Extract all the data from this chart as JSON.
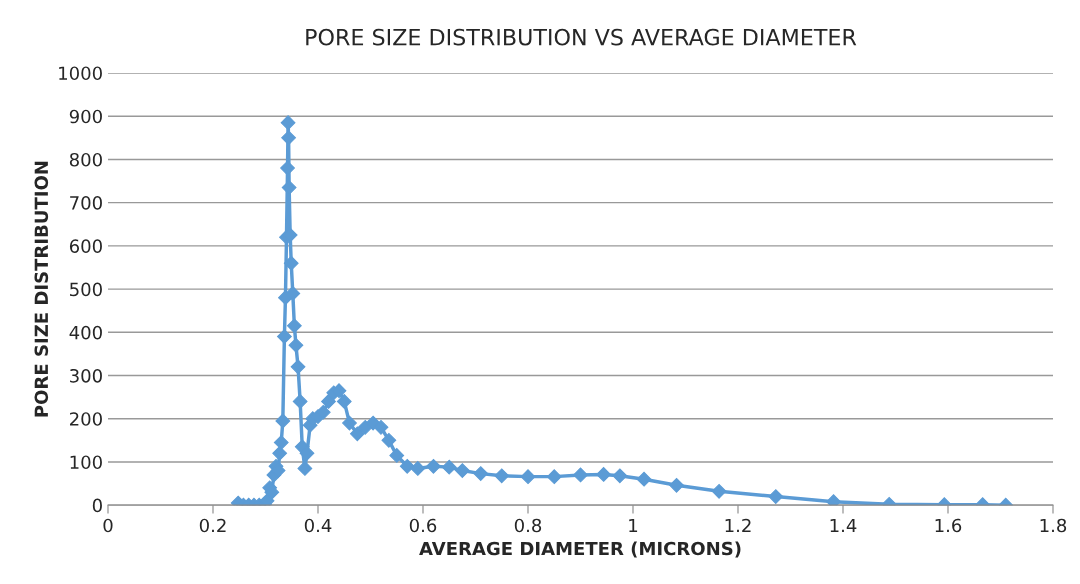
{
  "chart_data": {
    "type": "line",
    "title": "PORE SIZE DISTRIBUTION VS AVERAGE DIAMETER",
    "xlabel": "AVERAGE DIAMETER (MICRONS)",
    "ylabel": "PORE SIZE DISTRIBUTION",
    "xlim": [
      0,
      1.8
    ],
    "xticks": [
      0,
      0.2,
      0.4,
      0.6,
      0.8,
      {
        "value": 1,
        "label": "1"
      },
      1.2,
      1.4,
      1.6,
      1.8
    ],
    "ylim": [
      0,
      1000
    ],
    "yticks": [
      0,
      100,
      200,
      300,
      400,
      500,
      600,
      700,
      800,
      900,
      1000
    ],
    "grid": "y",
    "marker": "diamond",
    "line_style": "solid",
    "legend": false,
    "series": [
      {
        "color": "#5b9bd5",
        "x": [
          0.248,
          0.258,
          0.268,
          0.278,
          0.288,
          0.298,
          0.303,
          0.308,
          0.312,
          0.316,
          0.32,
          0.324,
          0.327,
          0.33,
          0.333,
          0.336,
          0.338,
          0.34,
          0.342,
          0.343,
          0.344,
          0.345,
          0.347,
          0.349,
          0.352,
          0.355,
          0.358,
          0.362,
          0.366,
          0.37,
          0.375,
          0.379,
          0.385,
          0.39,
          0.4,
          0.41,
          0.42,
          0.43,
          0.44,
          0.45,
          0.46,
          0.475,
          0.49,
          0.505,
          0.52,
          0.535,
          0.55,
          0.57,
          0.59,
          0.62,
          0.65,
          0.675,
          0.71,
          0.75,
          0.8,
          0.85,
          0.9,
          0.944,
          0.975,
          1.021,
          1.083,
          1.164,
          1.272,
          1.382,
          1.488,
          1.593,
          1.666,
          1.71
        ],
        "values": [
          5,
          0,
          0,
          0,
          0,
          2,
          10,
          40,
          30,
          70,
          90,
          80,
          120,
          145,
          195,
          390,
          480,
          620,
          780,
          885,
          850,
          735,
          625,
          560,
          490,
          415,
          370,
          320,
          240,
          135,
          85,
          120,
          185,
          200,
          205,
          215,
          240,
          260,
          265,
          240,
          190,
          165,
          180,
          190,
          180,
          150,
          115,
          90,
          85,
          90,
          88,
          80,
          73,
          68,
          66,
          66,
          70,
          71,
          68,
          60,
          46,
          32,
          20,
          8,
          2,
          1,
          1,
          0
        ]
      }
    ]
  }
}
